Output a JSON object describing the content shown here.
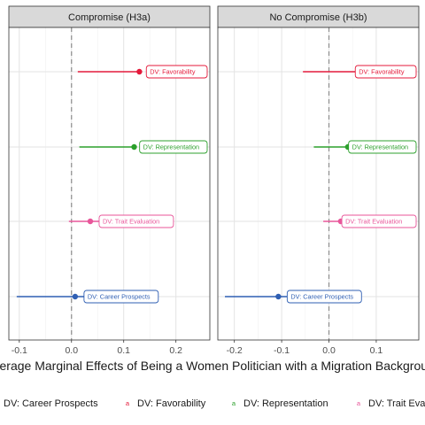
{
  "chart_data": {
    "type": "dot-and-whisker",
    "xlabel": "Average Marginal Effects of Being a Women Politician with a Migration Background",
    "rows": [
      "DV: Favorability",
      "DV: Representation",
      "DV: Trait Evaluation",
      "DV: Career Prospects"
    ],
    "colors": {
      "DV: Favorability": "#e41a3b",
      "DV: Representation": "#2ca02c",
      "DV: Trait Evaluation": "#e8569a",
      "DV: Career Prospects": "#2f5fb3"
    },
    "legend": {
      "position": "bottom",
      "entries": [
        "DV: Career Prospects",
        "DV: Favorability",
        "DV: Representation",
        "DV: Trait Evaluation"
      ]
    },
    "reference_line": {
      "x": 0,
      "style": "dashed"
    },
    "grid": true,
    "panels": [
      {
        "title": "Compromise (H3a)",
        "xlim": [
          -0.12,
          0.265
        ],
        "ticks": [
          -0.1,
          0.0,
          0.1,
          0.2
        ],
        "tick_labels": [
          "-0.1",
          "0.0",
          "0.1",
          "0.2"
        ],
        "estimates": [
          {
            "dv": "DV: Favorability",
            "estimate": 0.13,
            "ci_low": 0.012,
            "ci_high": 0.13,
            "tag": "DV: Favorability"
          },
          {
            "dv": "DV: Representation",
            "estimate": 0.12,
            "ci_low": 0.015,
            "ci_high": 0.12,
            "tag": "DV: Representation"
          },
          {
            "dv": "DV: Trait Evaluation",
            "estimate": 0.036,
            "ci_low": -0.005,
            "ci_high": 0.075,
            "tag": "DV: Trait Evaluation"
          },
          {
            "dv": "DV: Career Prospects",
            "estimate": 0.007,
            "ci_low": -0.105,
            "ci_high": 0.12,
            "tag": "DV: Career Prospects"
          }
        ]
      },
      {
        "title": "No Compromise (H3b)",
        "xlim": [
          -0.235,
          0.19
        ],
        "ticks": [
          -0.2,
          -0.1,
          0.0,
          0.1
        ],
        "tick_labels": [
          "-0.2",
          "-0.1",
          "0.0",
          "0.1"
        ],
        "estimates": [
          {
            "dv": "DV: Favorability",
            "estimate": 0.063,
            "ci_low": -0.055,
            "ci_high": 0.063,
            "tag": "DV: Favorability"
          },
          {
            "dv": "DV: Representation",
            "estimate": 0.04,
            "ci_low": -0.032,
            "ci_high": 0.04,
            "tag": "DV: Representation"
          },
          {
            "dv": "DV: Trait Evaluation",
            "estimate": 0.025,
            "ci_low": -0.012,
            "ci_high": 0.04,
            "tag": "DV: Trait Evaluation"
          },
          {
            "dv": "DV: Career Prospects",
            "estimate": -0.107,
            "ci_low": -0.22,
            "ci_high": 0.02,
            "tag": "DV: Career Prospects"
          }
        ]
      }
    ]
  }
}
